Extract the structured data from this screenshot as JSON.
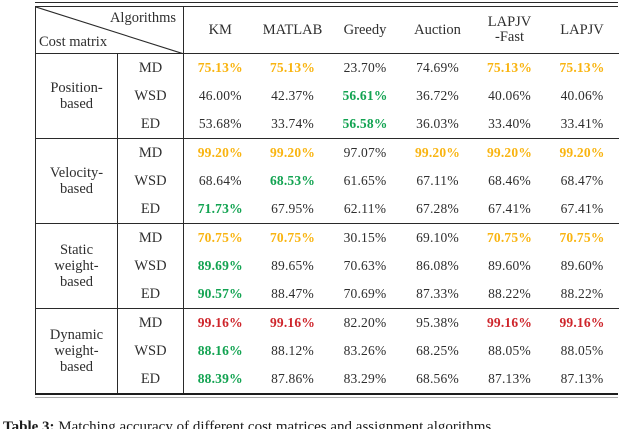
{
  "colors": {
    "orange": "#F9B410",
    "green": "#12A351",
    "red": "#CE252B",
    "text": "#2E2E2E",
    "line": "#2A2A2A"
  },
  "header": {
    "corner_top": "Algorithms",
    "corner_bottom": "Cost matrix",
    "columns": [
      {
        "line1": "KM",
        "line2": ""
      },
      {
        "line1": "MATLAB",
        "line2": ""
      },
      {
        "line1": "Greedy",
        "line2": ""
      },
      {
        "line1": "Auction",
        "line2": ""
      },
      {
        "line1": "LAPJV",
        "line2": "-Fast"
      },
      {
        "line1": "LAPJV",
        "line2": ""
      }
    ]
  },
  "groups": [
    {
      "label_lines": [
        "Position-",
        "based"
      ],
      "rows": [
        {
          "metric": "MD",
          "cells": [
            {
              "v": "75.13%",
              "c": "orange"
            },
            {
              "v": "75.13%",
              "c": "orange"
            },
            {
              "v": "23.70%",
              "c": ""
            },
            {
              "v": "74.69%",
              "c": ""
            },
            {
              "v": "75.13%",
              "c": "orange"
            },
            {
              "v": "75.13%",
              "c": "orange"
            }
          ]
        },
        {
          "metric": "WSD",
          "cells": [
            {
              "v": "46.00%",
              "c": ""
            },
            {
              "v": "42.37%",
              "c": ""
            },
            {
              "v": "56.61%",
              "c": "green"
            },
            {
              "v": "36.72%",
              "c": ""
            },
            {
              "v": "40.06%",
              "c": ""
            },
            {
              "v": "40.06%",
              "c": ""
            }
          ]
        },
        {
          "metric": "ED",
          "cells": [
            {
              "v": "53.68%",
              "c": ""
            },
            {
              "v": "33.74%",
              "c": ""
            },
            {
              "v": "56.58%",
              "c": "green"
            },
            {
              "v": "36.03%",
              "c": ""
            },
            {
              "v": "33.40%",
              "c": ""
            },
            {
              "v": "33.41%",
              "c": ""
            }
          ]
        }
      ]
    },
    {
      "label_lines": [
        "Velocity-",
        "based"
      ],
      "rows": [
        {
          "metric": "MD",
          "cells": [
            {
              "v": "99.20%",
              "c": "orange"
            },
            {
              "v": "99.20%",
              "c": "orange"
            },
            {
              "v": "97.07%",
              "c": ""
            },
            {
              "v": "99.20%",
              "c": "orange"
            },
            {
              "v": "99.20%",
              "c": "orange"
            },
            {
              "v": "99.20%",
              "c": "orange"
            }
          ]
        },
        {
          "metric": "WSD",
          "cells": [
            {
              "v": "68.64%",
              "c": ""
            },
            {
              "v": "68.53%",
              "c": "green"
            },
            {
              "v": "61.65%",
              "c": ""
            },
            {
              "v": "67.11%",
              "c": ""
            },
            {
              "v": "68.46%",
              "c": ""
            },
            {
              "v": "68.47%",
              "c": ""
            }
          ]
        },
        {
          "metric": "ED",
          "cells": [
            {
              "v": "71.73%",
              "c": "green"
            },
            {
              "v": "67.95%",
              "c": ""
            },
            {
              "v": "62.11%",
              "c": ""
            },
            {
              "v": "67.28%",
              "c": ""
            },
            {
              "v": "67.41%",
              "c": ""
            },
            {
              "v": "67.41%",
              "c": ""
            }
          ]
        }
      ]
    },
    {
      "label_lines": [
        "Static",
        "weight-",
        "based"
      ],
      "rows": [
        {
          "metric": "MD",
          "cells": [
            {
              "v": "70.75%",
              "c": "orange"
            },
            {
              "v": "70.75%",
              "c": "orange"
            },
            {
              "v": "30.15%",
              "c": ""
            },
            {
              "v": "69.10%",
              "c": ""
            },
            {
              "v": "70.75%",
              "c": "orange"
            },
            {
              "v": "70.75%",
              "c": "orange"
            }
          ]
        },
        {
          "metric": "WSD",
          "cells": [
            {
              "v": "89.69%",
              "c": "green"
            },
            {
              "v": "89.65%",
              "c": ""
            },
            {
              "v": "70.63%",
              "c": ""
            },
            {
              "v": "86.08%",
              "c": ""
            },
            {
              "v": "89.60%",
              "c": ""
            },
            {
              "v": "89.60%",
              "c": ""
            }
          ]
        },
        {
          "metric": "ED",
          "cells": [
            {
              "v": "90.57%",
              "c": "green"
            },
            {
              "v": "88.47%",
              "c": ""
            },
            {
              "v": "70.69%",
              "c": ""
            },
            {
              "v": "87.33%",
              "c": ""
            },
            {
              "v": "88.22%",
              "c": ""
            },
            {
              "v": "88.22%",
              "c": ""
            }
          ]
        }
      ]
    },
    {
      "label_lines": [
        "Dynamic",
        "weight-",
        "based"
      ],
      "rows": [
        {
          "metric": "MD",
          "cells": [
            {
              "v": "99.16%",
              "c": "red"
            },
            {
              "v": "99.16%",
              "c": "red"
            },
            {
              "v": "82.20%",
              "c": ""
            },
            {
              "v": "95.38%",
              "c": ""
            },
            {
              "v": "99.16%",
              "c": "red"
            },
            {
              "v": "99.16%",
              "c": "red"
            }
          ]
        },
        {
          "metric": "WSD",
          "cells": [
            {
              "v": "88.16%",
              "c": "green"
            },
            {
              "v": "88.12%",
              "c": ""
            },
            {
              "v": "83.26%",
              "c": ""
            },
            {
              "v": "68.25%",
              "c": ""
            },
            {
              "v": "88.05%",
              "c": ""
            },
            {
              "v": "88.05%",
              "c": ""
            }
          ]
        },
        {
          "metric": "ED",
          "cells": [
            {
              "v": "88.39%",
              "c": "green"
            },
            {
              "v": "87.86%",
              "c": ""
            },
            {
              "v": "83.29%",
              "c": ""
            },
            {
              "v": "68.56%",
              "c": ""
            },
            {
              "v": "87.13%",
              "c": ""
            },
            {
              "v": "87.13%",
              "c": ""
            }
          ]
        }
      ]
    }
  ],
  "caption": {
    "label": "Table 3:",
    "text": "Matching accuracy of different cost matrices and assignment algorithms"
  }
}
